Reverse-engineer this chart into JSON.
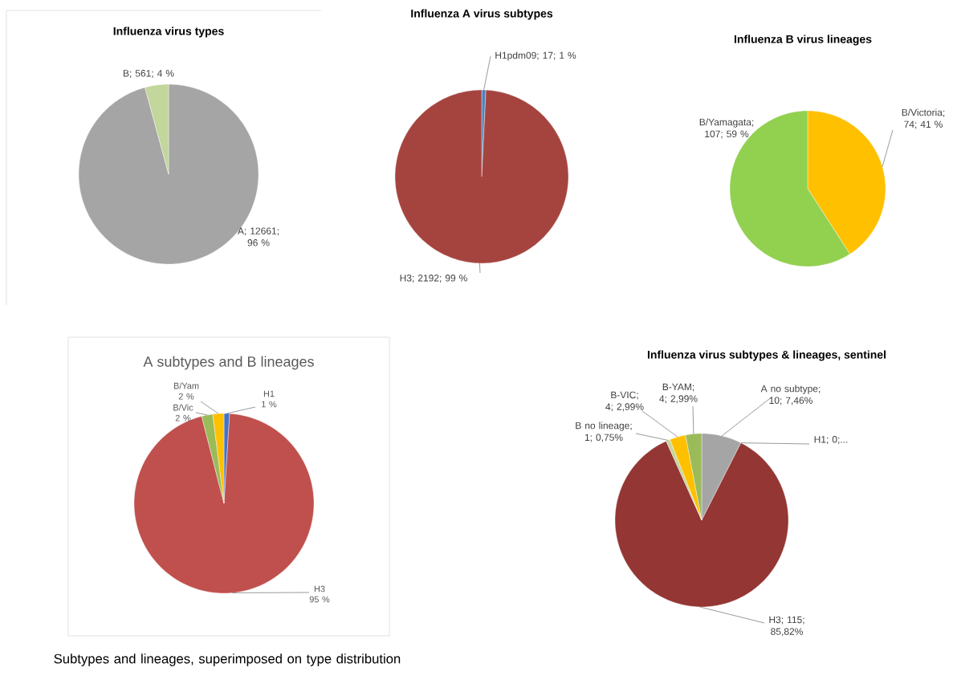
{
  "chart_data": [
    {
      "type": "pie",
      "title": "Influenza virus types",
      "categories": [
        "A",
        "B"
      ],
      "values": [
        12661,
        561
      ],
      "colors": [
        "#a5a5a5",
        "#c3d69b"
      ],
      "value_labels": [
        "; 12661; 96 %",
        "; 561; 4 %"
      ]
    },
    {
      "type": "pie",
      "title": "Influenza  A virus subtypes",
      "categories": [
        "H1pdm09",
        "H3"
      ],
      "values": [
        17,
        2192
      ],
      "colors": [
        "#4f81bd",
        "#a5443f"
      ],
      "value_labels": [
        "; 17; 1 %",
        "; 2192; 99 %"
      ]
    },
    {
      "type": "pie",
      "title": "Influenza  B virus lineages",
      "categories": [
        "B/Victoria",
        "B/Yamagata"
      ],
      "values": [
        74,
        107
      ],
      "colors": [
        "#ffc000",
        "#92d050"
      ],
      "value_labels": [
        "; 74; 41 %",
        "; 107; 59 %"
      ]
    },
    {
      "type": "pie",
      "title": "A subtypes and B lineages",
      "categories": [
        "H1",
        "H3",
        "B/Vic",
        "B/Yam"
      ],
      "values": [
        1,
        95,
        2,
        2
      ],
      "colors": [
        "#4472c4",
        "#c0504d",
        "#9bbb59",
        "#ffc000"
      ],
      "value_labels": [
        "1 %",
        "95 %",
        "2 %",
        "2 %"
      ],
      "annotations": [
        "Subtypes and lineages, superimposed on type distribution"
      ]
    },
    {
      "type": "pie",
      "title": "Influenza  virus subtypes & lineages, sentinel",
      "categories": [
        "A no subtype",
        "H1",
        "H3",
        "B no lineage",
        "B-VIC",
        "B-YAM"
      ],
      "values": [
        10,
        0,
        115,
        1,
        4,
        4
      ],
      "colors": [
        "#a5a5a5",
        "#4f81bd",
        "#943634",
        "#c3d69b",
        "#ffc000",
        "#9bbb59"
      ],
      "value_labels": [
        "; 10; 7,46%",
        "; 0;...",
        "; 115; 85,82%",
        "; 1; 0,75%",
        "; 4; 2,99%",
        "; 4; 2,99%"
      ]
    }
  ]
}
